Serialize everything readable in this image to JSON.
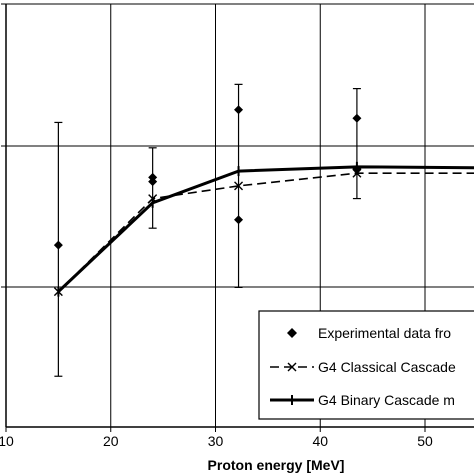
{
  "chart_data": {
    "type": "line",
    "title": "",
    "xlabel": "Proton energy [MeV]",
    "ylabel": "",
    "xlim": [
      10,
      60
    ],
    "x_ticks": [
      10,
      20,
      30,
      40,
      50
    ],
    "grid": true,
    "legend_position": "bottom-right",
    "series": [
      {
        "name": "Experimental data fro",
        "marker": "diamond",
        "points": [
          {
            "x": 15,
            "y": 0.43
          },
          {
            "x": 24,
            "y": 0.58
          },
          {
            "x": 24,
            "y": 0.59
          },
          {
            "x": 32.2,
            "y": 0.49
          },
          {
            "x": 32.2,
            "y": 0.75
          },
          {
            "x": 43.5,
            "y": 0.61
          },
          {
            "x": 43.5,
            "y": 0.73
          }
        ],
        "error_bars": [
          {
            "x": 15,
            "low": 0.12,
            "high": 0.72
          },
          {
            "x": 24,
            "low": 0.47,
            "high": 0.66
          },
          {
            "x": 32.2,
            "low": 0.33,
            "high": 0.81
          },
          {
            "x": 43.5,
            "low": 0.54,
            "high": 0.8
          }
        ]
      },
      {
        "name": "G4 Classical Cascade",
        "line_style": "dashed",
        "marker": "x",
        "x": [
          15,
          24,
          32.2,
          43.5,
          60
        ],
        "y": [
          0.32,
          0.54,
          0.57,
          0.6,
          0.6
        ]
      },
      {
        "name": "G4 Binary Cascade m",
        "line_style": "solid-thick",
        "marker": "plus",
        "x": [
          15,
          24,
          32.2,
          43.5,
          60
        ],
        "y": [
          0.32,
          0.53,
          0.605,
          0.615,
          0.612
        ]
      }
    ]
  }
}
